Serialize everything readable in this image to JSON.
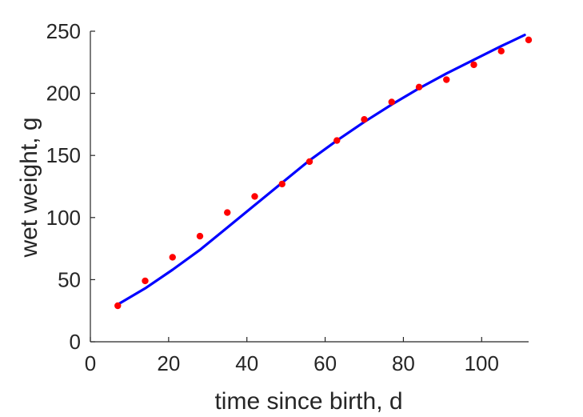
{
  "chart_data": {
    "type": "scatter",
    "title": "",
    "xlabel": "time since birth, d",
    "ylabel": "wet weight, g",
    "xlim": [
      0,
      112
    ],
    "ylim": [
      0,
      250
    ],
    "xticks": [
      0,
      20,
      40,
      60,
      80,
      100
    ],
    "yticks": [
      0,
      50,
      100,
      150,
      200,
      250
    ],
    "grid": false,
    "legend": "none",
    "series": [
      {
        "kind": "points",
        "color": "#ff0000",
        "x": [
          7,
          14,
          21,
          28,
          35,
          42,
          49,
          56,
          63,
          70,
          77,
          84,
          91,
          98,
          105,
          112
        ],
        "y": [
          29,
          49,
          68,
          85,
          104,
          117,
          127,
          145,
          162,
          179,
          193,
          205,
          211,
          223,
          234,
          243
        ]
      },
      {
        "kind": "line",
        "color": "#0000ff",
        "x": [
          7,
          14,
          21,
          28,
          35,
          42,
          49,
          56,
          63,
          70,
          77,
          84,
          91,
          98,
          105,
          111
        ],
        "y": [
          30,
          43,
          58,
          74,
          92,
          110,
          128,
          146,
          162,
          177,
          191,
          204,
          216,
          227,
          238,
          247
        ]
      }
    ]
  }
}
